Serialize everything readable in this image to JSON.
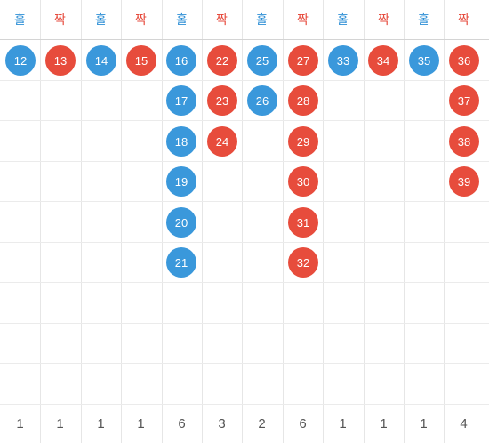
{
  "colors": {
    "odd": "#3a98db",
    "even": "#e74c3c",
    "odd_text": "#2e8fd6",
    "even_text": "#e64a3c"
  },
  "columns": [
    {
      "label": "홀",
      "kind": "odd",
      "balls": [
        "12"
      ],
      "count": "1"
    },
    {
      "label": "짝",
      "kind": "even",
      "balls": [
        "13"
      ],
      "count": "1"
    },
    {
      "label": "홀",
      "kind": "odd",
      "balls": [
        "14"
      ],
      "count": "1"
    },
    {
      "label": "짝",
      "kind": "even",
      "balls": [
        "15"
      ],
      "count": "1"
    },
    {
      "label": "홀",
      "kind": "odd",
      "balls": [
        "16",
        "17",
        "18",
        "19",
        "20",
        "21"
      ],
      "count": "6"
    },
    {
      "label": "짝",
      "kind": "even",
      "balls": [
        "22",
        "23",
        "24"
      ],
      "count": "3"
    },
    {
      "label": "홀",
      "kind": "odd",
      "balls": [
        "25",
        "26"
      ],
      "count": "2"
    },
    {
      "label": "짝",
      "kind": "even",
      "balls": [
        "27",
        "28",
        "29",
        "30",
        "31",
        "32"
      ],
      "count": "6"
    },
    {
      "label": "홀",
      "kind": "odd",
      "balls": [
        "33"
      ],
      "count": "1"
    },
    {
      "label": "짝",
      "kind": "even",
      "balls": [
        "34"
      ],
      "count": "1"
    },
    {
      "label": "홀",
      "kind": "odd",
      "balls": [
        "35"
      ],
      "count": "1"
    },
    {
      "label": "짝",
      "kind": "even",
      "balls": [
        "36",
        "37",
        "38",
        "39"
      ],
      "count": "4"
    }
  ]
}
